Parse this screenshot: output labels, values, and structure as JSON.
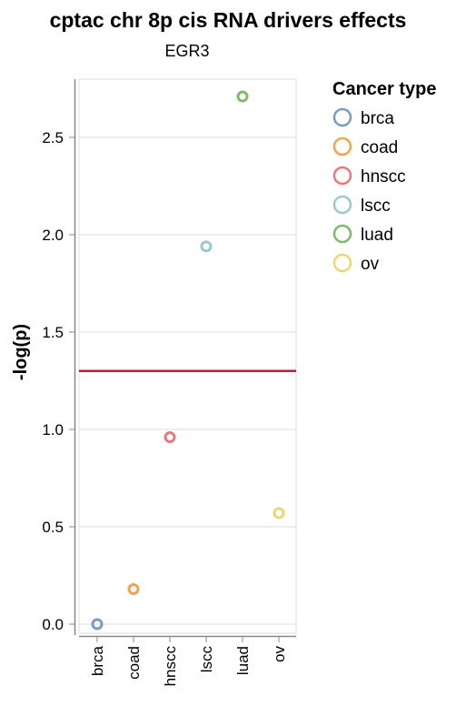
{
  "chart_data": {
    "type": "scatter",
    "title": "cptac chr 8p cis RNA drivers effects",
    "subtitle": "EGR3",
    "xlabel": "",
    "ylabel": "-log(p)",
    "categories": [
      "brca",
      "coad",
      "hnscc",
      "lscc",
      "luad",
      "ov"
    ],
    "points": [
      {
        "x": "brca",
        "y": 0.0,
        "color": "#7a9cc0"
      },
      {
        "x": "coad",
        "y": 0.18,
        "color": "#f2a24a"
      },
      {
        "x": "hnscc",
        "y": 0.96,
        "color": "#e8797a"
      },
      {
        "x": "lscc",
        "y": 1.94,
        "color": "#98cbc7"
      },
      {
        "x": "luad",
        "y": 2.71,
        "color": "#7dba6c"
      },
      {
        "x": "ov",
        "y": 0.57,
        "color": "#efd56e"
      }
    ],
    "threshold": {
      "y": 1.3,
      "color": "#c8173b"
    },
    "ylim": [
      0,
      2.8
    ],
    "yticks": [
      "0.0",
      "0.5",
      "1.0",
      "1.5",
      "2.0",
      "2.5"
    ],
    "grid": true,
    "legend": {
      "title": "Cancer type",
      "placement": "right",
      "items": [
        {
          "label": "brca",
          "color": "#7a9cc0"
        },
        {
          "label": "coad",
          "color": "#f2a24a"
        },
        {
          "label": "hnscc",
          "color": "#e8797a"
        },
        {
          "label": "lscc",
          "color": "#98cbc7"
        },
        {
          "label": "luad",
          "color": "#7dba6c"
        },
        {
          "label": "ov",
          "color": "#efd56e"
        }
      ]
    }
  }
}
